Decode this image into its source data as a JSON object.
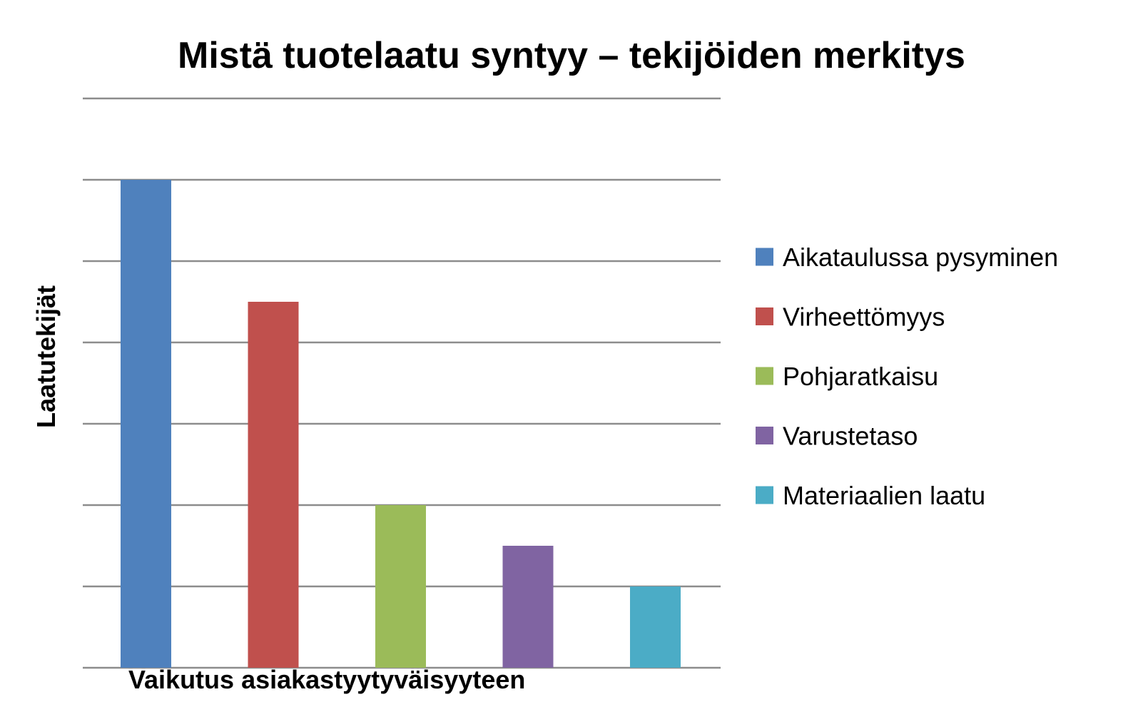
{
  "chart_data": {
    "type": "bar",
    "title": "Mistä tuotelaatu syntyy – tekijöiden merkitys",
    "xlabel": "Vaikutus asiakastyytyväisyyteen",
    "ylabel": "Laatutekijät",
    "ylim": [
      0,
      7
    ],
    "grid": true,
    "legend_position": "right",
    "series": [
      {
        "name": "Aikataulussa pysyminen",
        "value": 6,
        "color": "#4F81BD"
      },
      {
        "name": "Virheettömyys",
        "value": 4.5,
        "color": "#C0504D"
      },
      {
        "name": "Pohjaratkaisu",
        "value": 2,
        "color": "#9BBB59"
      },
      {
        "name": "Varustetaso",
        "value": 1.5,
        "color": "#8064A2"
      },
      {
        "name": "Materiaalien laatu",
        "value": 1,
        "color": "#4BACC6"
      }
    ]
  }
}
